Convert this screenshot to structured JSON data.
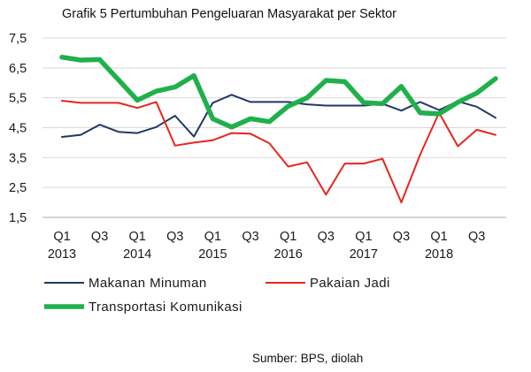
{
  "chart_data": {
    "type": "line",
    "title": "Grafik 5 Pertumbuhan Pengeluaran Masyarakat per Sektor",
    "source": "Sumber: BPS, diolah",
    "xlabel": "",
    "ylabel": "",
    "ylim": [
      1.5,
      7.5
    ],
    "yticks": [
      "7,5",
      "6,5",
      "5,5",
      "4,5",
      "3,5",
      "2,5",
      "1,5"
    ],
    "ytick_values": [
      7.5,
      6.5,
      5.5,
      4.5,
      3.5,
      2.5,
      1.5
    ],
    "x": [
      "2013 Q1",
      "2013 Q2",
      "2013 Q3",
      "2013 Q4",
      "2014 Q1",
      "2014 Q2",
      "2014 Q3",
      "2014 Q4",
      "2015 Q1",
      "2015 Q2",
      "2015 Q3",
      "2015 Q4",
      "2016 Q1",
      "2016 Q2",
      "2016 Q3",
      "2016 Q4",
      "2017 Q1",
      "2017 Q2",
      "2017 Q3",
      "2017 Q4",
      "2018 Q1",
      "2018 Q2",
      "2018 Q3",
      "2018 Q4"
    ],
    "xtick_labels": [
      {
        "index": 0,
        "quarter": "Q1",
        "year": "2013"
      },
      {
        "index": 2,
        "quarter": "Q3",
        "year": ""
      },
      {
        "index": 4,
        "quarter": "Q1",
        "year": "2014"
      },
      {
        "index": 6,
        "quarter": "Q3",
        "year": ""
      },
      {
        "index": 8,
        "quarter": "Q1",
        "year": "2015"
      },
      {
        "index": 10,
        "quarter": "Q3",
        "year": ""
      },
      {
        "index": 12,
        "quarter": "Q1",
        "year": "2016"
      },
      {
        "index": 14,
        "quarter": "Q3",
        "year": ""
      },
      {
        "index": 16,
        "quarter": "Q1",
        "year": "2017"
      },
      {
        "index": 18,
        "quarter": "Q3",
        "year": ""
      },
      {
        "index": 20,
        "quarter": "Q1",
        "year": "2018"
      },
      {
        "index": 22,
        "quarter": "Q3",
        "year": ""
      }
    ],
    "grid": true,
    "legend_position": "bottom",
    "series": [
      {
        "name": "Makanan Minuman",
        "color": "#1f3864",
        "width": 2,
        "values": [
          4.19,
          4.26,
          4.6,
          4.36,
          4.32,
          4.52,
          4.9,
          4.2,
          5.33,
          5.6,
          5.36,
          5.36,
          5.36,
          5.28,
          5.24,
          5.24,
          5.24,
          5.3,
          5.07,
          5.36,
          5.09,
          5.38,
          5.2,
          4.83
        ]
      },
      {
        "name": "Pakaian Jadi",
        "color": "#e8261d",
        "width": 2,
        "values": [
          5.4,
          5.33,
          5.33,
          5.33,
          5.16,
          5.36,
          3.9,
          4.0,
          4.08,
          4.32,
          4.3,
          3.98,
          3.2,
          3.34,
          2.26,
          3.3,
          3.3,
          3.46,
          2.0,
          3.6,
          5.0,
          3.88,
          4.43,
          4.26
        ]
      },
      {
        "name": "Transportasi Komunikasi",
        "color": "#20b04b",
        "width": 5.5,
        "values": [
          6.86,
          6.76,
          6.78,
          6.1,
          5.42,
          5.72,
          5.86,
          6.24,
          4.8,
          4.52,
          4.8,
          4.7,
          5.22,
          5.5,
          6.08,
          6.04,
          5.34,
          5.3,
          5.88,
          5.0,
          4.96,
          5.35,
          5.66,
          6.14
        ]
      }
    ]
  }
}
